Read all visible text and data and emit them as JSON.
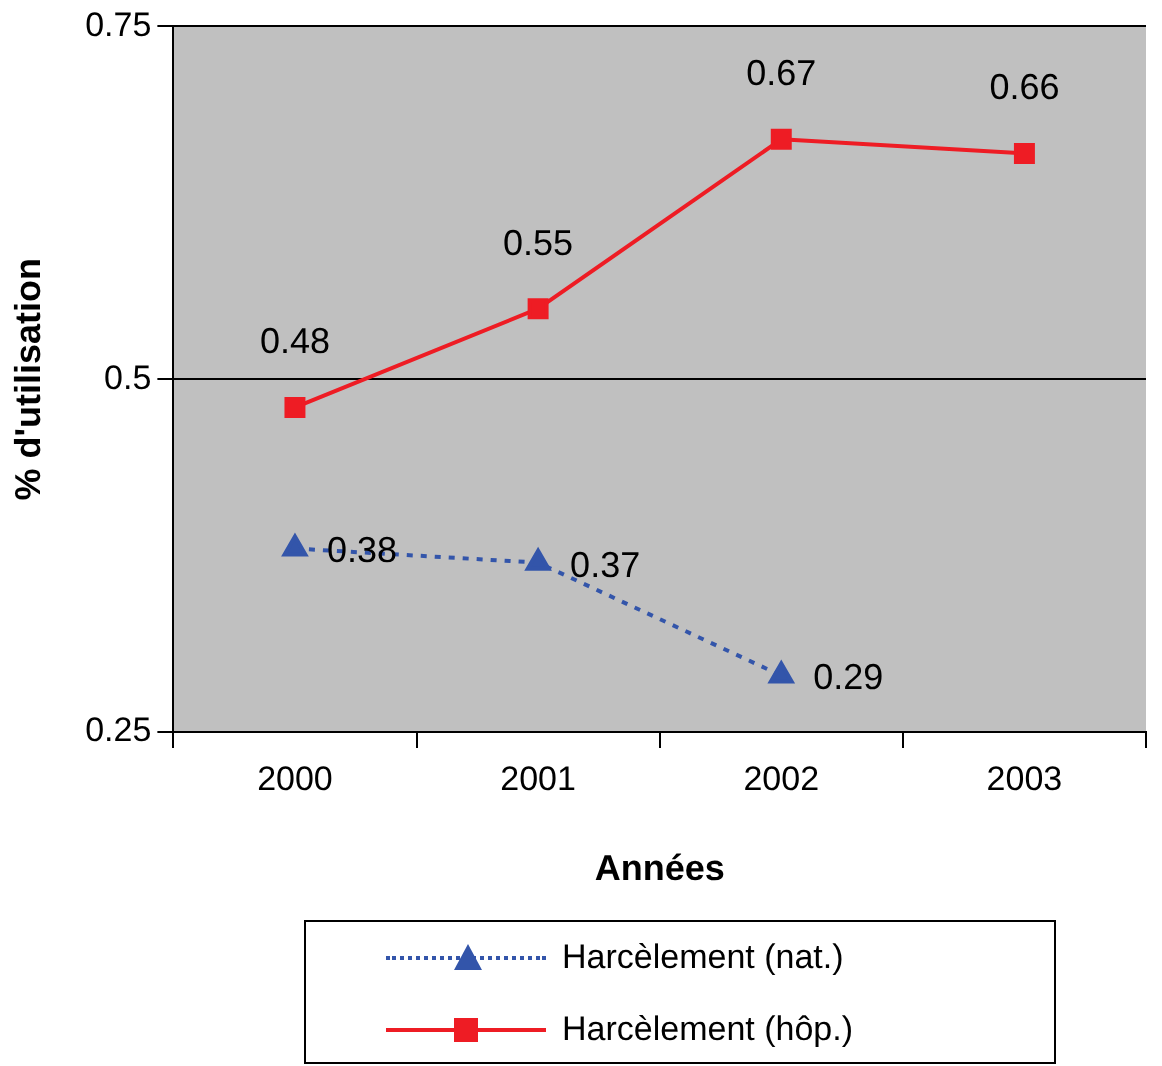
{
  "chart_data": {
    "type": "line",
    "xlabel": "Années",
    "ylabel": "% d'utilisation",
    "categories": [
      "2000",
      "2001",
      "2002",
      "2003"
    ],
    "series": [
      {
        "name": "Harcèlement (nat.)",
        "color": "#3355aa",
        "values": [
          0.38,
          0.37,
          0.29,
          null
        ],
        "marker": "triangle",
        "line_style": "dotted"
      },
      {
        "name": "Harcèlement (hôp.)",
        "color": "#ee1c24",
        "values": [
          0.48,
          0.55,
          0.67,
          0.66
        ],
        "marker": "square",
        "line_style": "solid"
      }
    ],
    "ylim": [
      0.25,
      0.75
    ],
    "yticks": [
      0.25,
      0.5,
      0.75
    ],
    "grid": "y",
    "legend": "bottom",
    "data_labels": true
  }
}
